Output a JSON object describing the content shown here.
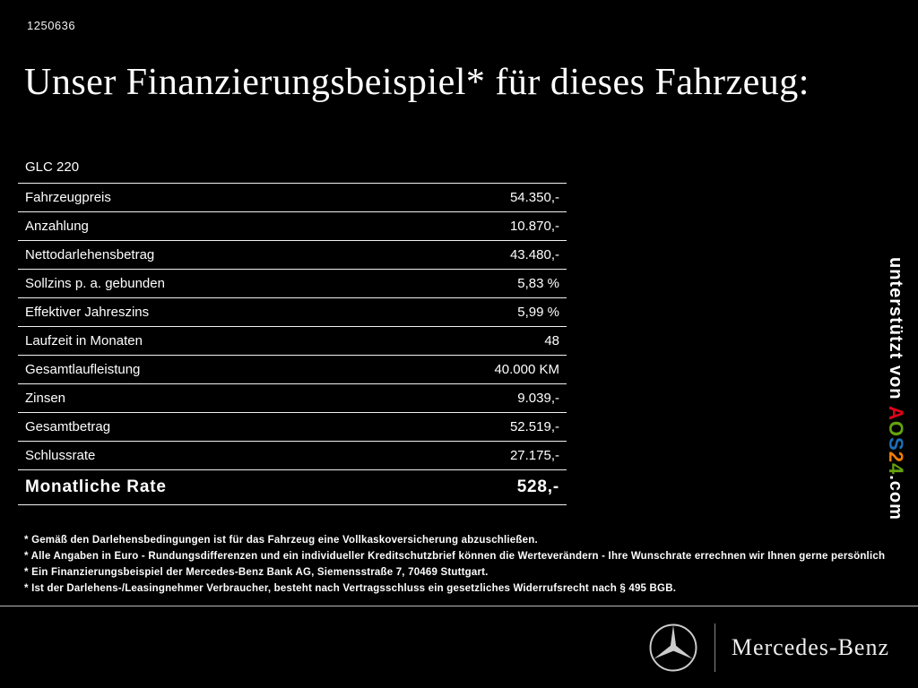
{
  "page": {
    "id_code": "1250636",
    "title": "Unser Finanzierungsbeispiel* für dieses Fahrzeug:"
  },
  "table": {
    "model": "GLC 220",
    "rows": [
      {
        "label": "Fahrzeugpreis",
        "value": "54.350,-"
      },
      {
        "label": "Anzahlung",
        "value": "10.870,-"
      },
      {
        "label": "Nettodarlehensbetrag",
        "value": "43.480,-"
      },
      {
        "label": "Sollzins p. a. gebunden",
        "value": "5,83 %"
      },
      {
        "label": "Effektiver Jahreszins",
        "value": "5,99 %"
      },
      {
        "label": "Laufzeit in Monaten",
        "value": "48"
      },
      {
        "label": "Gesamtlaufleistung",
        "value": "40.000 KM"
      },
      {
        "label": "Zinsen",
        "value": "9.039,-"
      },
      {
        "label": "Gesamtbetrag",
        "value": "52.519,-"
      },
      {
        "label": "Schlussrate",
        "value": "27.175,-"
      }
    ],
    "highlight_row": {
      "label": "Monatliche Rate",
      "value": "528,-"
    }
  },
  "footnotes": [
    "* Gemäß den Darlehensbedingungen ist für das Fahrzeug eine Vollkaskoversicherung abzuschließen.",
    "* Alle Angaben in Euro - Rundungsdifferenzen und ein individueller Kreditschutzbrief können die Werteverändern - Ihre Wunschrate errechnen wir Ihnen gerne persönlich",
    "* Ein Finanzierungsbeispiel der Mercedes-Benz Bank AG, Siemensstraße 7, 70469 Stuttgart.",
    "* Ist der Darlehens-/Leasingnehmer Verbraucher, besteht nach Vertragsschluss ein gesetzliches Widerrufsrecht nach § 495 BGB."
  ],
  "watermark": {
    "prefix": "unterstützt von ",
    "brand": [
      {
        "ch": "A",
        "color": "#e2001a"
      },
      {
        "ch": "O",
        "color": "#65a30d"
      },
      {
        "ch": "S",
        "color": "#1d6fb8"
      },
      {
        "ch": "2",
        "color": "#f07d00"
      },
      {
        "ch": "4",
        "color": "#65a30d"
      }
    ],
    "suffix": ".com"
  },
  "footer": {
    "brand": "Mercedes-Benz"
  },
  "colors": {
    "background": "#000000",
    "text": "#ffffff",
    "table_line": "#f2f2f2"
  }
}
